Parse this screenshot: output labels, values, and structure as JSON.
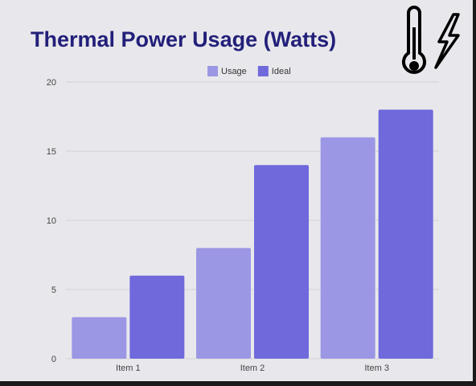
{
  "icons": [
    "thermometer-icon",
    "lightning-bolt-icon"
  ],
  "chart_data": {
    "type": "bar",
    "title": "Thermal Power Usage (Watts)",
    "categories": [
      "Item 1",
      "Item 2",
      "Item 3"
    ],
    "series": [
      {
        "name": "Usage",
        "values": [
          3,
          8,
          16
        ],
        "color": "#9b97e4"
      },
      {
        "name": "Ideal",
        "values": [
          6,
          14,
          18
        ],
        "color": "#6f69dc"
      }
    ],
    "ylim": [
      0,
      20
    ],
    "yticks": [
      0,
      5,
      10,
      15,
      20
    ],
    "grid": true,
    "legend": "top"
  }
}
